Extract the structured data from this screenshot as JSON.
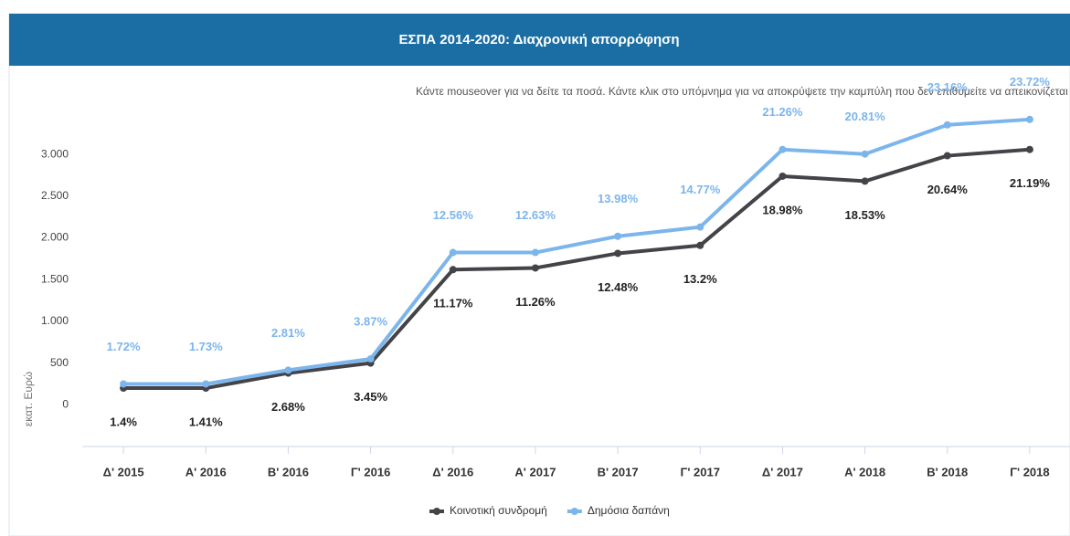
{
  "chart_data": {
    "type": "line",
    "title": "ΕΣΠΑ 2014-2020: Διαχρονική απορρόφηση",
    "subtitle": "Κάντε mouseover για να δείτε τα ποσά. Κάντε κλικ στο υπόμνημα για να αποκρύψετε την καμπύλη που δεν επιθυμείτε να απεικονίζεται",
    "y_label": "εκατ. Ευρώ",
    "categories": [
      "Δ' 2015",
      "Α' 2016",
      "Β' 2016",
      "Γ' 2016",
      "Δ' 2016",
      "Α' 2017",
      "Β' 2017",
      "Γ' 2017",
      "Δ' 2017",
      "Α' 2018",
      "Β' 2018",
      "Γ' 2018"
    ],
    "series": [
      {
        "name": "Κοινοτική συνδρομή",
        "color": "#434348",
        "values": [
          200,
          200,
          380,
          500,
          1620,
          1640,
          1815,
          1910,
          2740,
          2680,
          2985,
          3060
        ],
        "percent_labels": [
          "1.4%",
          "1.41%",
          "2.68%",
          "3.45%",
          "11.17%",
          "11.26%",
          "12.48%",
          "13.2%",
          "18.98%",
          "18.53%",
          "20.64%",
          "21.19%"
        ]
      },
      {
        "name": "Δημόσια δαπάνη",
        "color": "#7cb5ec",
        "values": [
          250,
          250,
          415,
          550,
          1825,
          1825,
          2020,
          2130,
          3060,
          3005,
          3355,
          3420
        ],
        "percent_labels": [
          "1.72%",
          "1.73%",
          "2.81%",
          "3.87%",
          "12.56%",
          "12.63%",
          "13.98%",
          "14.77%",
          "21.26%",
          "20.81%",
          "23.16%",
          "23.72%"
        ]
      }
    ],
    "ylim": [
      -500,
      3500
    ],
    "yticks": [
      0,
      500,
      {
        "value": 1000,
        "label": "1.000"
      },
      {
        "value": 1500,
        "label": "1.500"
      },
      {
        "value": 2000,
        "label": "2.000"
      },
      {
        "value": 2500,
        "label": "2.500"
      },
      {
        "value": 3000,
        "label": "3.000"
      }
    ],
    "grid": false
  }
}
